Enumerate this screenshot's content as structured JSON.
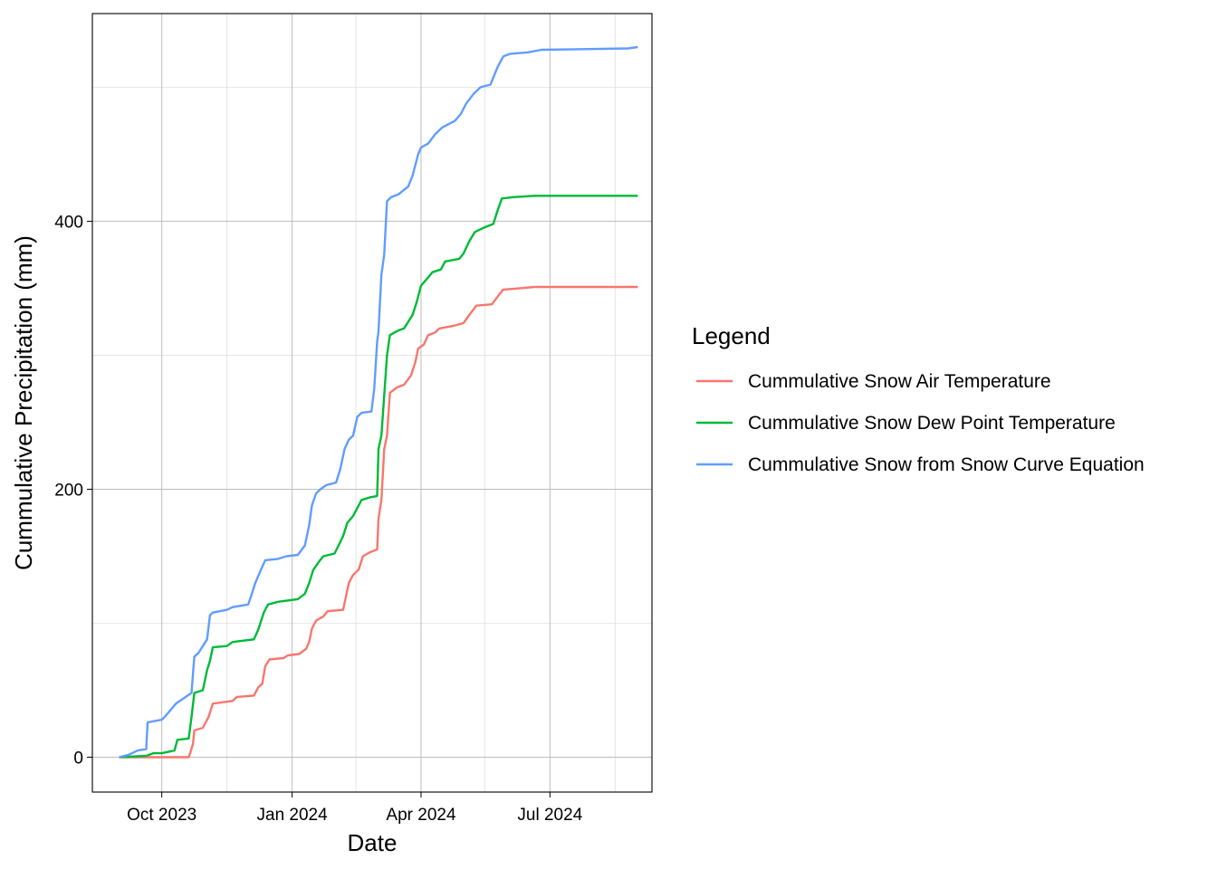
{
  "chart_data": {
    "type": "line",
    "title": "",
    "xlabel": "Date",
    "ylabel": "Cummulative Precipitation (mm)",
    "x_axis_type": "date",
    "xlim": [
      "2023-08-13",
      "2024-09-11"
    ],
    "ylim": [
      -26,
      555
    ],
    "x_ticks": [
      {
        "date": "2023-10-01",
        "label": "Oct 2023"
      },
      {
        "date": "2024-01-01",
        "label": "Jan 2024"
      },
      {
        "date": "2024-04-01",
        "label": "Apr 2024"
      },
      {
        "date": "2024-07-01",
        "label": "Jul 2024"
      }
    ],
    "x_minor_gridlines": [
      "2023-11-16",
      "2024-02-15",
      "2024-05-16",
      "2024-08-16"
    ],
    "y_ticks": [
      0,
      200,
      400
    ],
    "y_minor_gridlines": [
      100,
      300,
      500
    ],
    "grid": true,
    "legend": {
      "title": "Legend",
      "position": "right"
    },
    "series": [
      {
        "name": "Cummulative Snow Air Temperature",
        "color": "#F8766D",
        "points": [
          [
            "2023-09-01",
            0
          ],
          [
            "2023-10-20",
            0
          ],
          [
            "2023-10-21",
            3
          ],
          [
            "2023-10-23",
            10
          ],
          [
            "2023-10-24",
            20
          ],
          [
            "2023-10-30",
            22
          ],
          [
            "2023-11-03",
            30
          ],
          [
            "2023-11-06",
            40
          ],
          [
            "2023-11-20",
            42
          ],
          [
            "2023-11-23",
            45
          ],
          [
            "2023-12-05",
            46
          ],
          [
            "2023-12-08",
            52
          ],
          [
            "2023-12-11",
            55
          ],
          [
            "2023-12-13",
            68
          ],
          [
            "2023-12-16",
            73
          ],
          [
            "2023-12-26",
            74
          ],
          [
            "2023-12-29",
            76
          ],
          [
            "2024-01-06",
            77
          ],
          [
            "2024-01-11",
            81
          ],
          [
            "2024-01-13",
            86
          ],
          [
            "2024-01-15",
            96
          ],
          [
            "2024-01-18",
            102
          ],
          [
            "2024-01-23",
            105
          ],
          [
            "2024-01-26",
            109
          ],
          [
            "2024-02-06",
            110
          ],
          [
            "2024-02-08",
            120
          ],
          [
            "2024-02-10",
            130
          ],
          [
            "2024-02-13",
            136
          ],
          [
            "2024-02-17",
            140
          ],
          [
            "2024-02-20",
            150
          ],
          [
            "2024-02-25",
            153
          ],
          [
            "2024-03-01",
            155
          ],
          [
            "2024-03-02",
            178
          ],
          [
            "2024-03-04",
            192
          ],
          [
            "2024-03-06",
            230
          ],
          [
            "2024-03-08",
            240
          ],
          [
            "2024-03-10",
            272
          ],
          [
            "2024-03-15",
            276
          ],
          [
            "2024-03-20",
            278
          ],
          [
            "2024-03-25",
            285
          ],
          [
            "2024-03-28",
            295
          ],
          [
            "2024-03-30",
            305
          ],
          [
            "2024-04-03",
            308
          ],
          [
            "2024-04-06",
            315
          ],
          [
            "2024-04-11",
            317
          ],
          [
            "2024-04-14",
            320
          ],
          [
            "2024-04-24",
            322
          ],
          [
            "2024-05-01",
            324
          ],
          [
            "2024-05-05",
            330
          ],
          [
            "2024-05-10",
            337
          ],
          [
            "2024-05-21",
            338
          ],
          [
            "2024-05-26",
            345
          ],
          [
            "2024-05-29",
            349
          ],
          [
            "2024-06-10",
            350
          ],
          [
            "2024-06-20",
            351
          ],
          [
            "2024-09-01",
            351
          ]
        ]
      },
      {
        "name": "Cummulative Snow Dew Point Temperature",
        "color": "#00BA38",
        "points": [
          [
            "2023-09-01",
            0
          ],
          [
            "2023-09-20",
            1
          ],
          [
            "2023-09-25",
            3
          ],
          [
            "2023-10-01",
            3
          ],
          [
            "2023-10-10",
            5
          ],
          [
            "2023-10-12",
            13
          ],
          [
            "2023-10-20",
            14
          ],
          [
            "2023-10-22",
            30
          ],
          [
            "2023-10-24",
            48
          ],
          [
            "2023-10-30",
            50
          ],
          [
            "2023-11-02",
            65
          ],
          [
            "2023-11-04",
            72
          ],
          [
            "2023-11-06",
            82
          ],
          [
            "2023-11-16",
            83
          ],
          [
            "2023-11-20",
            86
          ],
          [
            "2023-12-05",
            88
          ],
          [
            "2023-12-08",
            95
          ],
          [
            "2023-12-12",
            108
          ],
          [
            "2023-12-15",
            114
          ],
          [
            "2023-12-22",
            116
          ],
          [
            "2024-01-05",
            118
          ],
          [
            "2024-01-10",
            122
          ],
          [
            "2024-01-13",
            130
          ],
          [
            "2024-01-16",
            140
          ],
          [
            "2024-01-20",
            146
          ],
          [
            "2024-01-23",
            150
          ],
          [
            "2024-01-31",
            152
          ],
          [
            "2024-02-06",
            165
          ],
          [
            "2024-02-09",
            175
          ],
          [
            "2024-02-13",
            180
          ],
          [
            "2024-02-19",
            192
          ],
          [
            "2024-02-25",
            194
          ],
          [
            "2024-03-01",
            195
          ],
          [
            "2024-03-02",
            230
          ],
          [
            "2024-03-04",
            240
          ],
          [
            "2024-03-06",
            270
          ],
          [
            "2024-03-08",
            300
          ],
          [
            "2024-03-10",
            315
          ],
          [
            "2024-03-15",
            318
          ],
          [
            "2024-03-20",
            320
          ],
          [
            "2024-03-26",
            330
          ],
          [
            "2024-03-29",
            340
          ],
          [
            "2024-04-01",
            352
          ],
          [
            "2024-04-06",
            358
          ],
          [
            "2024-04-09",
            362
          ],
          [
            "2024-04-15",
            364
          ],
          [
            "2024-04-18",
            370
          ],
          [
            "2024-04-28",
            372
          ],
          [
            "2024-05-01",
            376
          ],
          [
            "2024-05-05",
            385
          ],
          [
            "2024-05-09",
            392
          ],
          [
            "2024-05-15",
            395
          ],
          [
            "2024-05-22",
            398
          ],
          [
            "2024-05-25",
            408
          ],
          [
            "2024-05-28",
            417
          ],
          [
            "2024-06-05",
            418
          ],
          [
            "2024-06-20",
            419
          ],
          [
            "2024-09-01",
            419
          ]
        ]
      },
      {
        "name": "Cummulative Snow from Snow Curve Equation",
        "color": "#619CFF",
        "points": [
          [
            "2023-09-01",
            0
          ],
          [
            "2023-09-08",
            2
          ],
          [
            "2023-09-14",
            5
          ],
          [
            "2023-09-20",
            6
          ],
          [
            "2023-09-21",
            26
          ],
          [
            "2023-10-01",
            28
          ],
          [
            "2023-10-03",
            30
          ],
          [
            "2023-10-11",
            40
          ],
          [
            "2023-10-22",
            48
          ],
          [
            "2023-10-24",
            75
          ],
          [
            "2023-10-27",
            78
          ],
          [
            "2023-11-02",
            88
          ],
          [
            "2023-11-04",
            106
          ],
          [
            "2023-11-06",
            108
          ],
          [
            "2023-11-16",
            110
          ],
          [
            "2023-11-20",
            112
          ],
          [
            "2023-12-01",
            114
          ],
          [
            "2023-12-03",
            120
          ],
          [
            "2023-12-06",
            130
          ],
          [
            "2023-12-10",
            140
          ],
          [
            "2023-12-13",
            147
          ],
          [
            "2023-12-22",
            148
          ],
          [
            "2023-12-28",
            150
          ],
          [
            "2024-01-05",
            151
          ],
          [
            "2024-01-10",
            158
          ],
          [
            "2024-01-13",
            173
          ],
          [
            "2024-01-15",
            188
          ],
          [
            "2024-01-18",
            197
          ],
          [
            "2024-01-21",
            200
          ],
          [
            "2024-01-25",
            203
          ],
          [
            "2024-02-01",
            205
          ],
          [
            "2024-02-04",
            215
          ],
          [
            "2024-02-07",
            230
          ],
          [
            "2024-02-10",
            237
          ],
          [
            "2024-02-13",
            240
          ],
          [
            "2024-02-16",
            254
          ],
          [
            "2024-02-19",
            257
          ],
          [
            "2024-02-26",
            258
          ],
          [
            "2024-02-28",
            275
          ],
          [
            "2024-03-01",
            310
          ],
          [
            "2024-03-02",
            318
          ],
          [
            "2024-03-04",
            360
          ],
          [
            "2024-03-06",
            375
          ],
          [
            "2024-03-08",
            415
          ],
          [
            "2024-03-11",
            418
          ],
          [
            "2024-03-16",
            420
          ],
          [
            "2024-03-23",
            426
          ],
          [
            "2024-03-26",
            434
          ],
          [
            "2024-03-30",
            450
          ],
          [
            "2024-04-01",
            455
          ],
          [
            "2024-04-06",
            458
          ],
          [
            "2024-04-11",
            465
          ],
          [
            "2024-04-16",
            470
          ],
          [
            "2024-04-25",
            475
          ],
          [
            "2024-04-29",
            480
          ],
          [
            "2024-05-03",
            488
          ],
          [
            "2024-05-08",
            495
          ],
          [
            "2024-05-13",
            500
          ],
          [
            "2024-05-20",
            502
          ],
          [
            "2024-05-25",
            515
          ],
          [
            "2024-05-29",
            523
          ],
          [
            "2024-06-03",
            525
          ],
          [
            "2024-06-15",
            526
          ],
          [
            "2024-06-25",
            528
          ],
          [
            "2024-08-25",
            529
          ],
          [
            "2024-09-01",
            530
          ]
        ]
      }
    ]
  }
}
